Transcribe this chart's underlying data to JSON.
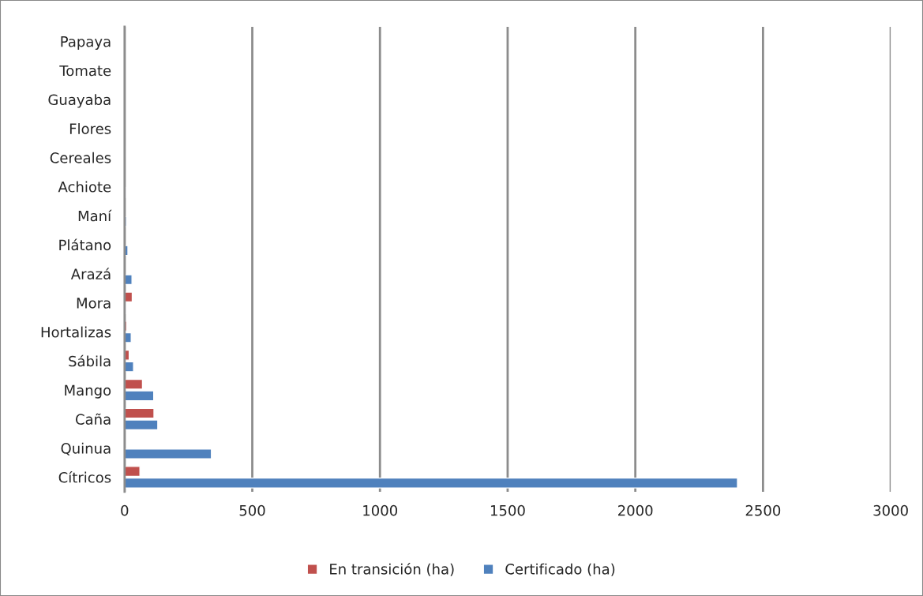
{
  "chart_data": {
    "type": "bar",
    "orientation": "horizontal",
    "categories": [
      "Papaya",
      "Tomate",
      "Guayaba",
      "Flores",
      "Cereales",
      "Achiote",
      "Maní",
      "Plátano",
      "Arazá",
      "Mora",
      "Hortalizas",
      "Sábila",
      "Mango",
      "Caña",
      "Quinua",
      "Cítricos"
    ],
    "series": [
      {
        "name": "En transición (ha)",
        "color": "#c0504d",
        "values": [
          null,
          null,
          null,
          null,
          2,
          null,
          null,
          null,
          null,
          30,
          8,
          18,
          70,
          115,
          null,
          60
        ]
      },
      {
        "name": "Certificado (ha)",
        "color": "#4f81bd",
        "values": [
          null,
          null,
          null,
          null,
          null,
          4,
          7,
          13,
          29,
          4,
          26,
          35,
          114,
          130,
          340,
          2400
        ]
      }
    ],
    "xlim": [
      0,
      3000
    ],
    "xticks": [
      0,
      500,
      1000,
      1500,
      2000,
      2500,
      3000
    ],
    "grid": "x",
    "legend": "bottom"
  }
}
